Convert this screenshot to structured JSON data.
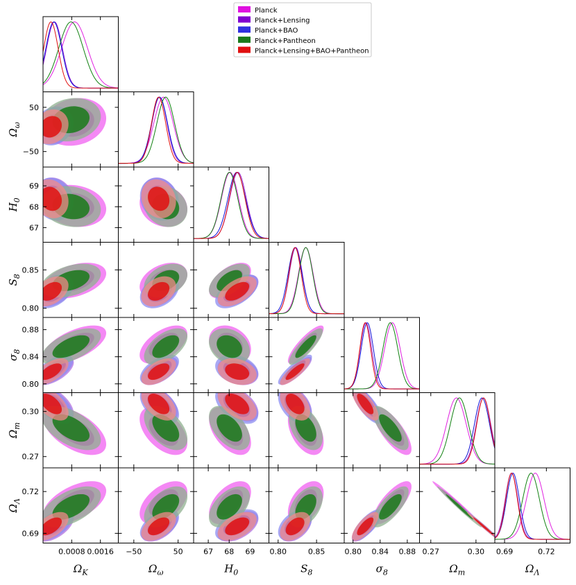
{
  "chart_data": {
    "type": "triangle",
    "title": "",
    "parameters": [
      {
        "id": "OmegaK",
        "label_base": "Ω",
        "label_sub": "K",
        "range": [
          0.0,
          0.0021
        ],
        "ticks": [
          0.0008,
          0.0016
        ],
        "tick_labels": [
          "0.0008",
          "0.0016"
        ]
      },
      {
        "id": "Omegaw",
        "label_base": "Ω",
        "label_sub": "ω",
        "range": [
          -85,
          85
        ],
        "ticks": [
          -50,
          50
        ],
        "tick_labels": [
          "−50",
          "50"
        ]
      },
      {
        "id": "H0",
        "label_base": "H",
        "label_sub": "0",
        "range": [
          66.3,
          69.9
        ],
        "ticks": [
          67,
          68,
          69
        ],
        "tick_labels": [
          "67",
          "68",
          "69"
        ]
      },
      {
        "id": "S8",
        "label_base": "S",
        "label_sub": "8",
        "range": [
          0.788,
          0.886
        ],
        "ticks": [
          0.8,
          0.85
        ],
        "tick_labels": [
          "0.80",
          "0.85"
        ]
      },
      {
        "id": "sigma8",
        "label_base": "σ",
        "label_sub": "8",
        "range": [
          0.787,
          0.898
        ],
        "ticks": [
          0.8,
          0.84,
          0.88
        ],
        "tick_labels": [
          "0.80",
          "0.84",
          "0.88"
        ]
      },
      {
        "id": "Omegam",
        "label_base": "Ω",
        "label_sub": "m",
        "range": [
          0.2625,
          0.3125
        ],
        "ticks": [
          0.27,
          0.3
        ],
        "tick_labels": [
          "0.27",
          "0.30"
        ]
      },
      {
        "id": "OmegaL",
        "label_base": "Ω",
        "label_sub": "Λ",
        "range": [
          0.683,
          0.737
        ],
        "ticks": [
          0.69,
          0.72
        ],
        "tick_labels": [
          "0.69",
          "0.72"
        ]
      }
    ],
    "series": [
      {
        "name": "Planck",
        "line_color": "#e020e0",
        "fill_inner": "#e010e0",
        "fill_outer": "#f060f0",
        "means": [
          0.00088,
          17,
          68.04,
          0.836,
          0.858,
          0.287,
          0.712
        ],
        "sigmas": [
          0.00036,
          22,
          0.41,
          0.0095,
          0.0115,
          0.0065,
          0.0063
        ]
      },
      {
        "name": "Planck+Lensing",
        "line_color": "#9020d0",
        "fill_inner": "#8000d0",
        "fill_outer": "#b070e0",
        "means": [
          0.00032,
          8,
          68.42,
          0.823,
          0.819,
          0.305,
          0.695
        ],
        "sigmas": [
          0.00022,
          17,
          0.4,
          0.0085,
          0.0085,
          0.0048,
          0.0045
        ]
      },
      {
        "name": "Planck+BAO",
        "line_color": "#1010d8",
        "fill_inner": "#3030e0",
        "fill_outer": "#8c8cf0",
        "means": [
          0.0003,
          8,
          68.36,
          0.822,
          0.821,
          0.304,
          0.696
        ],
        "sigmas": [
          0.00022,
          18,
          0.42,
          0.009,
          0.009,
          0.005,
          0.0046
        ]
      },
      {
        "name": "Planck+Pantheon",
        "line_color": "#108010",
        "fill_inner": "#1a7a1a",
        "fill_outer": "#8fb08f",
        "means": [
          0.00078,
          22,
          68.01,
          0.836,
          0.855,
          0.289,
          0.709
        ],
        "sigmas": [
          0.00034,
          20,
          0.4,
          0.009,
          0.011,
          0.006,
          0.006
        ]
      },
      {
        "name": "Planck+Lensing+BAO+Pantheon",
        "line_color": "#e01010",
        "fill_inner": "#e01010",
        "fill_outer": "#f08a8a",
        "means": [
          0.00022,
          6,
          68.38,
          0.822,
          0.818,
          0.305,
          0.695
        ],
        "sigmas": [
          0.0002,
          16,
          0.38,
          0.008,
          0.008,
          0.0045,
          0.0042
        ]
      }
    ],
    "correlations": {
      "1,0": 0.15,
      "2,0": -0.15,
      "2,1": -0.15,
      "3,0": 0.4,
      "3,1": 0.35,
      "3,2": 0.55,
      "4,0": 0.6,
      "4,1": 0.55,
      "4,2": -0.25,
      "4,3": 0.85,
      "5,0": -0.55,
      "5,1": -0.5,
      "5,2": -0.5,
      "5,3": -0.45,
      "5,4": -0.75,
      "6,0": 0.55,
      "6,1": 0.5,
      "6,2": 0.5,
      "6,3": 0.45,
      "6,4": 0.75,
      "6,5": -0.99
    },
    "legend": {
      "position": "top-right",
      "entries": [
        "Planck",
        "Planck+Lensing",
        "Planck+BAO",
        "Planck+Pantheon",
        "Planck+Lensing+BAO+Pantheon"
      ]
    }
  }
}
